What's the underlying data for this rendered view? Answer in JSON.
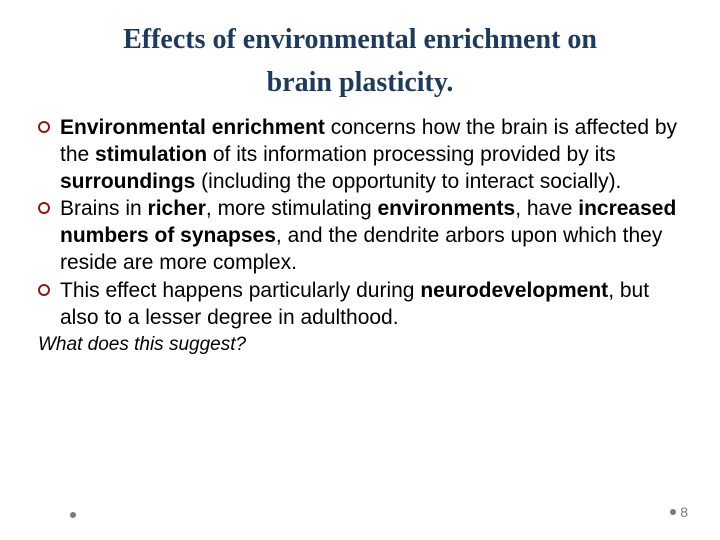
{
  "title": {
    "line1": "Effects of environmental enrichment on",
    "line2": "brain plasticity.",
    "color": "#1f3a5a",
    "fontsize": 28
  },
  "body": {
    "fontsize": 21,
    "color": "#000000",
    "bullets": [
      {
        "runs": [
          {
            "t": "Environmental enrichment",
            "b": true
          },
          {
            "t": " concerns how the brain is affected by the ",
            "b": false
          },
          {
            "t": "stimulation",
            "b": true
          },
          {
            "t": " of its information processing provided by its ",
            "b": false
          },
          {
            "t": "surroundings",
            "b": true
          },
          {
            "t": " (including the opportunity to interact socially).",
            "b": false
          }
        ]
      },
      {
        "runs": [
          {
            "t": "Brains in ",
            "b": false
          },
          {
            "t": "richer",
            "b": true
          },
          {
            "t": ", more stimulating ",
            "b": false
          },
          {
            "t": "environments",
            "b": true
          },
          {
            "t": ", have ",
            "b": false
          },
          {
            "t": "increased numbers of synapses",
            "b": true
          },
          {
            "t": ", and the dendrite arbors upon which they reside are more complex.",
            "b": false
          }
        ]
      },
      {
        "runs": [
          {
            "t": "This effect happens particularly during ",
            "b": false
          },
          {
            "t": "neurodevelopment",
            "b": true
          },
          {
            "t": ", but also to a lesser degree in adulthood.",
            "b": false
          }
        ]
      }
    ]
  },
  "question": {
    "text": "What does this suggest?",
    "fontsize": 19,
    "color": "#000000"
  },
  "page": {
    "number": "8",
    "fontsize": 14,
    "color": "#7a7a7a",
    "dot_color": "#7a7a7a"
  },
  "footer_dot_color": "#7a7a7a",
  "bullet_marker_color": "#8b1a1a",
  "background_color": "#ffffff"
}
